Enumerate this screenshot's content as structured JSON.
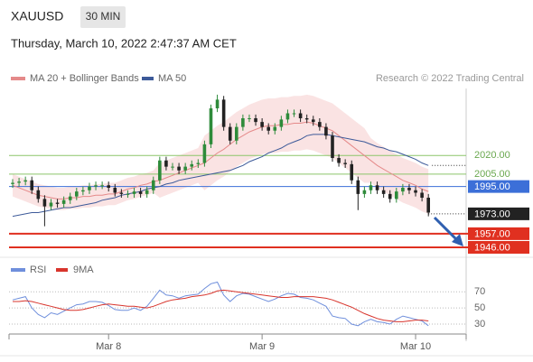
{
  "chart_data": {
    "type": "candlestick",
    "symbol": "XAUUSD",
    "timeframe": "30 MIN",
    "date": "Thursday, March 10, 2022 2:47:37 AM CET",
    "source": "Research © 2022 Trading Central",
    "ylim": [
      1938,
      2074
    ],
    "categories": [
      null,
      null,
      null,
      null,
      null,
      null,
      null,
      null,
      null,
      null,
      null,
      null,
      null,
      null,
      null,
      "Mar 8",
      null,
      null,
      null,
      null,
      null,
      null,
      null,
      null,
      null,
      null,
      null,
      null,
      null,
      null,
      null,
      null,
      null,
      null,
      null,
      null,
      null,
      null,
      null,
      "Mar 9",
      null,
      null,
      null,
      null,
      null,
      null,
      null,
      null,
      null,
      null,
      null,
      null,
      null,
      null,
      null,
      null,
      null,
      null,
      null,
      null,
      null,
      null,
      null,
      "Mar 10",
      null,
      null
    ],
    "ohlc": {
      "up_color": "#2e8b3a",
      "down_color": "#222222",
      "open": [
        1997,
        1998,
        1999,
        2000,
        1992,
        1985,
        1979,
        1982,
        1981,
        1984,
        1987,
        1991,
        1992,
        1995,
        1996,
        1996,
        1994,
        1990,
        1989,
        1989,
        1991,
        1989,
        1992,
        2000,
        2016,
        2011,
        2011,
        2008,
        2011,
        2013,
        2014,
        2029,
        2058,
        2065,
        2043,
        2032,
        2043,
        2050,
        2050,
        2047,
        2043,
        2040,
        2043,
        2049,
        2054,
        2054,
        2050,
        2049,
        2047,
        2043,
        2036,
        2018,
        2014,
        2013,
        2000,
        1989,
        1992,
        1996,
        1992,
        1989,
        1985,
        1991,
        1994,
        1992,
        1990,
        1986
      ],
      "high": [
        2001,
        2002,
        2003,
        2003,
        1995,
        1988,
        1985,
        1985,
        1987,
        1990,
        1994,
        1995,
        1998,
        1999,
        1999,
        1999,
        1997,
        1993,
        1992,
        1994,
        1994,
        1995,
        2003,
        2019,
        2019,
        2014,
        2014,
        2014,
        2016,
        2017,
        2032,
        2061,
        2069,
        2068,
        2046,
        2046,
        2053,
        2053,
        2053,
        2050,
        2046,
        2046,
        2052,
        2057,
        2057,
        2057,
        2053,
        2052,
        2050,
        2046,
        2039,
        2021,
        2017,
        2016,
        2003,
        1995,
        1999,
        1999,
        1995,
        1992,
        1994,
        1997,
        1997,
        1995,
        1993,
        1989
      ],
      "low": [
        1994,
        1995,
        1996,
        1989,
        1982,
        1963,
        1976,
        1978,
        1978,
        1981,
        1984,
        1988,
        1989,
        1992,
        1993,
        1991,
        1987,
        1986,
        1986,
        1986,
        1986,
        1986,
        1989,
        1997,
        2008,
        2008,
        2005,
        2005,
        2008,
        2010,
        2011,
        2026,
        2055,
        2040,
        2029,
        2029,
        2040,
        2047,
        2044,
        2040,
        2037,
        2037,
        2040,
        2046,
        2051,
        2047,
        2046,
        2044,
        2040,
        2033,
        2015,
        2011,
        2010,
        1997,
        1976,
        1986,
        1989,
        1989,
        1986,
        1982,
        1982,
        1988,
        1989,
        1987,
        1983,
        1971
      ],
      "close": [
        1998,
        1999,
        2000,
        1992,
        1985,
        1979,
        1982,
        1981,
        1984,
        1987,
        1991,
        1992,
        1995,
        1996,
        1996,
        1994,
        1990,
        1989,
        1989,
        1991,
        1989,
        1992,
        2000,
        2016,
        2011,
        2011,
        2008,
        2011,
        2013,
        2014,
        2029,
        2058,
        2065,
        2043,
        2032,
        2043,
        2050,
        2050,
        2047,
        2043,
        2040,
        2043,
        2049,
        2054,
        2054,
        2050,
        2049,
        2047,
        2043,
        2036,
        2018,
        2014,
        2013,
        2000,
        1989,
        1992,
        1996,
        1992,
        1989,
        1985,
        1991,
        1994,
        1992,
        1990,
        1986,
        1974
      ]
    },
    "series": [
      {
        "name": "MA 20 + Bollinger Bands",
        "color": "#e58a8a",
        "band_color": "#f7d0d0",
        "values": [
          1996,
          1994,
          1992,
          1990,
          1988,
          1987,
          1986,
          1985,
          1985,
          1986,
          1986,
          1987,
          1987,
          1988,
          1988,
          1989,
          1989,
          1991,
          1993,
          1994,
          1996,
          1997,
          1999,
          2000,
          2002,
          2004,
          2006,
          2008,
          2010,
          2012,
          2014,
          2018,
          2022,
          2025,
          2029,
          2033,
          2036,
          2039,
          2041,
          2043,
          2044,
          2044,
          2045,
          2045,
          2046,
          2046,
          2047,
          2046,
          2044,
          2042,
          2040,
          2036,
          2032,
          2028,
          2024,
          2020,
          2016,
          2012,
          2009,
          2006,
          2003,
          2000,
          1998,
          1996,
          1993,
          1991
        ],
        "upper": [
          2005,
          2003,
          2001,
          1999,
          1997,
          1996,
          1995,
          1994,
          1994,
          1995,
          1995,
          1996,
          1996,
          1997,
          1997,
          1998,
          1998,
          2000,
          2002,
          2003,
          2005,
          2006,
          2008,
          2014,
          2016,
          2018,
          2020,
          2022,
          2024,
          2026,
          2036,
          2040,
          2044,
          2047,
          2051,
          2055,
          2058,
          2061,
          2063,
          2065,
          2066,
          2066,
          2067,
          2067,
          2068,
          2068,
          2069,
          2068,
          2066,
          2064,
          2062,
          2058,
          2054,
          2050,
          2046,
          2042,
          2034,
          2030,
          2027,
          2024,
          2021,
          2018,
          2016,
          2014,
          2011,
          2009
        ],
        "lower": [
          1987,
          1985,
          1983,
          1981,
          1979,
          1978,
          1977,
          1976,
          1976,
          1977,
          1977,
          1978,
          1978,
          1979,
          1979,
          1980,
          1980,
          1982,
          1984,
          1985,
          1987,
          1988,
          1990,
          1986,
          1988,
          1990,
          1992,
          1994,
          1996,
          1998,
          1992,
          1996,
          2000,
          2003,
          2007,
          2011,
          2014,
          2017,
          2019,
          2021,
          2022,
          2022,
          2023,
          2023,
          2024,
          2024,
          2025,
          2024,
          2022,
          2020,
          2018,
          2014,
          2010,
          2006,
          2002,
          1998,
          1998,
          1994,
          1991,
          1988,
          1985,
          1982,
          1980,
          1978,
          1975,
          1973
        ]
      },
      {
        "name": "MA 50",
        "color": "#3d5a99",
        "values": [
          1971,
          1972,
          1973,
          1974,
          1974,
          1975,
          1976,
          1977,
          1978,
          1978,
          1979,
          1980,
          1981,
          1982,
          1984,
          1985,
          1986,
          1988,
          1989,
          1990,
          1991,
          1993,
          1994,
          1995,
          1997,
          1998,
          2000,
          2001,
          2002,
          2003,
          2004,
          2005,
          2006,
          2007,
          2008,
          2010,
          2012,
          2015,
          2017,
          2019,
          2022,
          2024,
          2026,
          2029,
          2031,
          2033,
          2036,
          2037,
          2037,
          2037,
          2036,
          2035,
          2034,
          2033,
          2032,
          2031,
          2029,
          2027,
          2026,
          2024,
          2023,
          2021,
          2019,
          2017,
          2014,
          2012
        ]
      }
    ],
    "levels": [
      {
        "value": 2020,
        "label": "2020.00",
        "color": "#8cc56a",
        "style": "plain"
      },
      {
        "value": 2005,
        "label": "2005.00",
        "color": "#8cc56a",
        "style": "plain"
      },
      {
        "value": 1995,
        "label": "1995.00",
        "color": "#3c6fd8",
        "style": "box"
      },
      {
        "value": 1973,
        "label": "1973.00",
        "color": "#222222",
        "style": "last"
      },
      {
        "value": 1957,
        "label": "1957.00",
        "color": "#e03020",
        "style": "box"
      },
      {
        "value": 1946,
        "label": "1946.00",
        "color": "#e03020",
        "style": "box"
      }
    ],
    "indicator": {
      "ylim": [
        20,
        87
      ],
      "yticks": [
        30,
        50,
        70
      ],
      "series": [
        {
          "name": "RSI",
          "color": "#6f8fdc",
          "values": [
            60,
            62,
            64,
            50,
            42,
            38,
            44,
            42,
            46,
            50,
            54,
            55,
            58,
            58,
            57,
            53,
            48,
            47,
            47,
            50,
            47,
            52,
            62,
            72,
            66,
            65,
            62,
            65,
            66,
            67,
            74,
            80,
            82,
            66,
            58,
            65,
            68,
            67,
            64,
            61,
            58,
            61,
            65,
            68,
            67,
            63,
            62,
            60,
            56,
            52,
            40,
            38,
            37,
            30,
            28,
            33,
            36,
            33,
            32,
            30,
            36,
            40,
            38,
            36,
            34,
            28
          ]
        },
        {
          "name": "9MA",
          "color": "#d8342c",
          "values": [
            58,
            58,
            59,
            58,
            56,
            54,
            52,
            50,
            48,
            47,
            47,
            48,
            50,
            52,
            54,
            55,
            54,
            53,
            52,
            52,
            51,
            50,
            52,
            55,
            58,
            60,
            61,
            62,
            64,
            65,
            66,
            68,
            71,
            72,
            71,
            70,
            69,
            68,
            67,
            66,
            65,
            64,
            63,
            63,
            64,
            64,
            64,
            64,
            63,
            62,
            60,
            57,
            54,
            51,
            47,
            43,
            40,
            37,
            35,
            34,
            33,
            33,
            34,
            35,
            35,
            34
          ]
        }
      ]
    }
  }
}
